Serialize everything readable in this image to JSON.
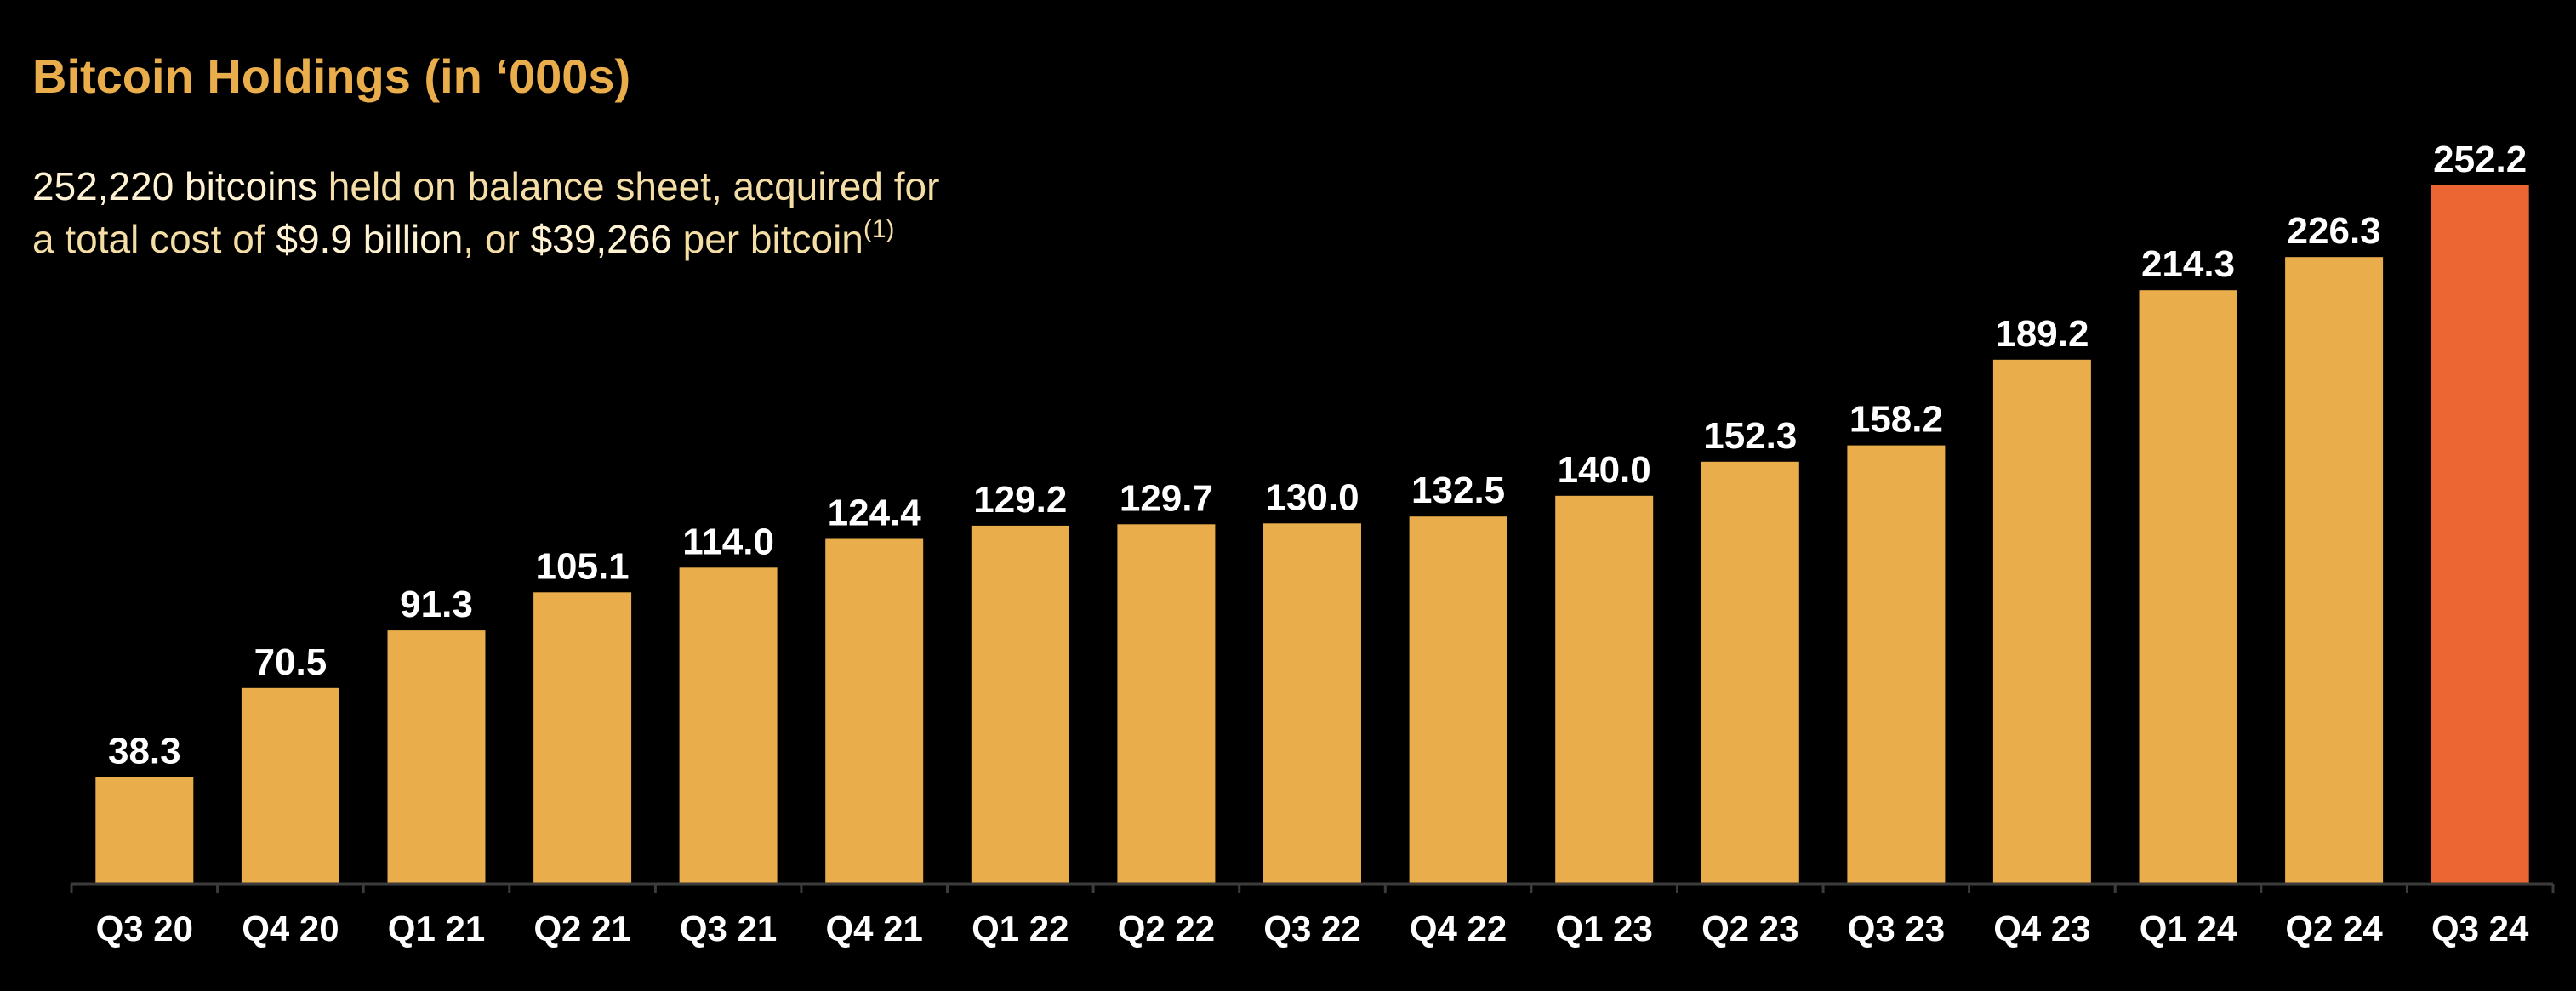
{
  "header": {
    "title": "Bitcoin Holdings (in ‘000s)"
  },
  "summary": {
    "line1_count": "252,220 bitcoins",
    "line1_rest": " held on balance sheet, acquired for",
    "line2_prefix": "a total cost of ",
    "line2_cost": "$9.9 billion",
    "line2_mid": ", or ",
    "line2_price": "$39,266",
    "line2_suffix": " per bitcoin",
    "footnote": "(1)"
  },
  "colors": {
    "background": "#000000",
    "title": "#e9ad4b",
    "bar": "#e9ad4b",
    "highlight_bar": "#ec6633",
    "axis": "#3c3c3c",
    "label": "#ffffff"
  },
  "chart_data": {
    "type": "bar",
    "title": "Bitcoin Holdings (in ‘000s)",
    "xlabel": "",
    "ylabel": "",
    "ylim": [
      0,
      260
    ],
    "grid": false,
    "legend": "none",
    "categories": [
      "Q3 20",
      "Q4 20",
      "Q1 21",
      "Q2 21",
      "Q3 21",
      "Q4 21",
      "Q1 22",
      "Q2 22",
      "Q3 22",
      "Q4 22",
      "Q1 23",
      "Q2 23",
      "Q3 23",
      "Q4 23",
      "Q1 24",
      "Q2 24",
      "Q3 24"
    ],
    "values": [
      38.3,
      70.5,
      91.3,
      105.1,
      114.0,
      124.4,
      129.2,
      129.7,
      130.0,
      132.5,
      140.0,
      152.3,
      158.2,
      189.2,
      214.3,
      226.3,
      252.2
    ],
    "data_labels": [
      "38.3",
      "70.5",
      "91.3",
      "105.1",
      "114.0",
      "124.4",
      "129.2",
      "129.7",
      "130.0",
      "132.5",
      "140.0",
      "152.3",
      "158.2",
      "189.2",
      "214.3",
      "226.3",
      "252.2"
    ],
    "highlight_index": 16
  }
}
